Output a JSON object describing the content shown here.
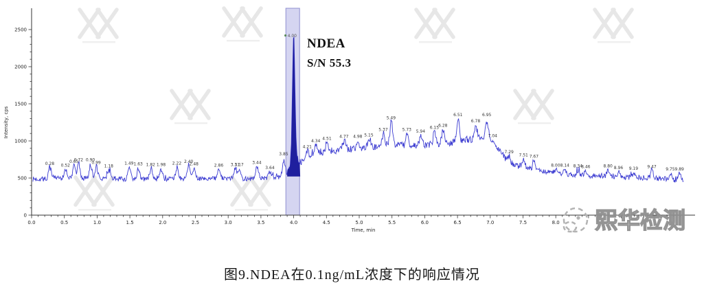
{
  "caption": "图9.NDEA在0.1ng/mL浓度下的响应情况",
  "annotation": {
    "line1": "NDEA",
    "line2": "S/N 55.3"
  },
  "logo": {
    "text": "熙华检测"
  },
  "chart_data": {
    "type": "line",
    "title": "",
    "xlabel": "Time, min",
    "ylabel": "Intensity, cps",
    "xlim": [
      0,
      9.95
    ],
    "ylim": [
      0,
      2750
    ],
    "x_tick_step_labeled": 0.5,
    "x_tick_max_labeled": 8.0,
    "y_ticks": [
      0,
      500,
      1000,
      1500,
      2000,
      2500
    ],
    "grid": false,
    "legend": "none",
    "trace_color": "#3b3bd1",
    "peak_fill_color": "#1f1f9e",
    "band_fill_color": "#b9b9e8",
    "band_stroke_color": "#8f8fd0",
    "main_peak": {
      "name": "NDEA",
      "time": 4.0,
      "label": "4.00",
      "intensity": 2430,
      "signal_to_noise": 55.3,
      "band": [
        3.88,
        4.09
      ]
    },
    "baseline_envelope": [
      [
        0,
        485
      ],
      [
        0.7,
        498
      ],
      [
        1.5,
        486
      ],
      [
        2.5,
        490
      ],
      [
        3.3,
        492
      ],
      [
        3.7,
        503
      ],
      [
        3.95,
        520
      ],
      [
        4.05,
        600
      ],
      [
        4.15,
        740
      ],
      [
        4.4,
        845
      ],
      [
        4.8,
        890
      ],
      [
        5.2,
        920
      ],
      [
        5.45,
        955
      ],
      [
        5.8,
        930
      ],
      [
        6.1,
        950
      ],
      [
        6.5,
        990
      ],
      [
        6.8,
        1035
      ],
      [
        6.95,
        1050
      ],
      [
        7.05,
        980
      ],
      [
        7.15,
        850
      ],
      [
        7.3,
        700
      ],
      [
        7.5,
        640
      ],
      [
        7.8,
        590
      ],
      [
        8.2,
        545
      ],
      [
        8.7,
        522
      ],
      [
        9.2,
        508
      ],
      [
        9.6,
        492
      ],
      [
        9.95,
        462
      ]
    ],
    "noise_amplitude_baseline": 34,
    "noise_amplitude_hump": 46,
    "peak_labels": [
      [
        0.28,
        640
      ],
      [
        0.52,
        615
      ],
      [
        0.65,
        665
      ],
      [
        0.72,
        690
      ],
      [
        0.9,
        690
      ],
      [
        0.99,
        655
      ],
      [
        1.18,
        605
      ],
      [
        1.49,
        645
      ],
      [
        1.63,
        635
      ],
      [
        1.82,
        625
      ],
      [
        1.98,
        625
      ],
      [
        2.22,
        645
      ],
      [
        2.4,
        665
      ],
      [
        2.48,
        635
      ],
      [
        2.86,
        615
      ],
      [
        3.11,
        625
      ],
      [
        3.17,
        625
      ],
      [
        3.44,
        655
      ],
      [
        3.64,
        585
      ],
      [
        3.85,
        770
      ],
      [
        4.21,
        865
      ],
      [
        4.34,
        945
      ],
      [
        4.51,
        975
      ],
      [
        4.77,
        1005
      ],
      [
        4.98,
        1005
      ],
      [
        5.15,
        1025
      ],
      [
        5.37,
        1095
      ],
      [
        5.49,
        1255
      ],
      [
        5.73,
        1095
      ],
      [
        5.94,
        1075
      ],
      [
        6.15,
        1125
      ],
      [
        6.28,
        1155
      ],
      [
        6.51,
        1295
      ],
      [
        6.78,
        1215
      ],
      [
        6.95,
        1295
      ],
      [
        7.04,
        1015
      ],
      [
        7.29,
        795
      ],
      [
        7.51,
        755
      ],
      [
        7.67,
        735
      ],
      [
        8,
        615
      ],
      [
        8.14,
        615
      ],
      [
        8.34,
        605
      ],
      [
        8.46,
        595
      ],
      [
        8.8,
        605
      ],
      [
        8.96,
        585
      ],
      [
        9.19,
        575
      ],
      [
        9.47,
        595
      ],
      [
        9.75,
        565
      ],
      [
        9.89,
        565
      ]
    ]
  }
}
